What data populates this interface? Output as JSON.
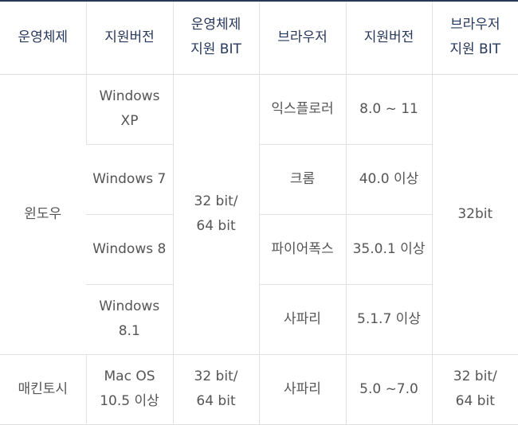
{
  "headers": [
    {
      "lines": [
        "운영체제"
      ]
    },
    {
      "lines": [
        "지원버전"
      ]
    },
    {
      "lines": [
        "운영체제",
        "지원 BIT"
      ]
    },
    {
      "lines": [
        "브라우저"
      ]
    },
    {
      "lines": [
        "지원버전"
      ]
    },
    {
      "lines": [
        "브라우저",
        "지원 BIT"
      ]
    }
  ],
  "windows": {
    "os": "윈도우",
    "bit": [
      "32 bit/",
      "64 bit"
    ],
    "browser_bit": "32bit",
    "versions": [
      [
        "Windows",
        "XP"
      ],
      [
        "Windows 7"
      ],
      [
        "Windows 8"
      ],
      [
        "Windows",
        "8.1"
      ]
    ],
    "browsers": [
      {
        "name": "익스플로러",
        "version": "8.0 ~ 11"
      },
      {
        "name": "크롬",
        "version": "40.0 이상"
      },
      {
        "name": "파이어폭스",
        "version": "35.0.1 이상"
      },
      {
        "name": "사파리",
        "version": "5.1.7 이상"
      }
    ]
  },
  "mac": {
    "os": "매킨토시",
    "version": [
      "Mac OS",
      "10.5 이상"
    ],
    "bit": [
      "32 bit/",
      "64 bit"
    ],
    "browser": "사파리",
    "browser_version": "5.0 ~7.0",
    "browser_bit": [
      "32 bit/",
      "64 bit"
    ]
  }
}
